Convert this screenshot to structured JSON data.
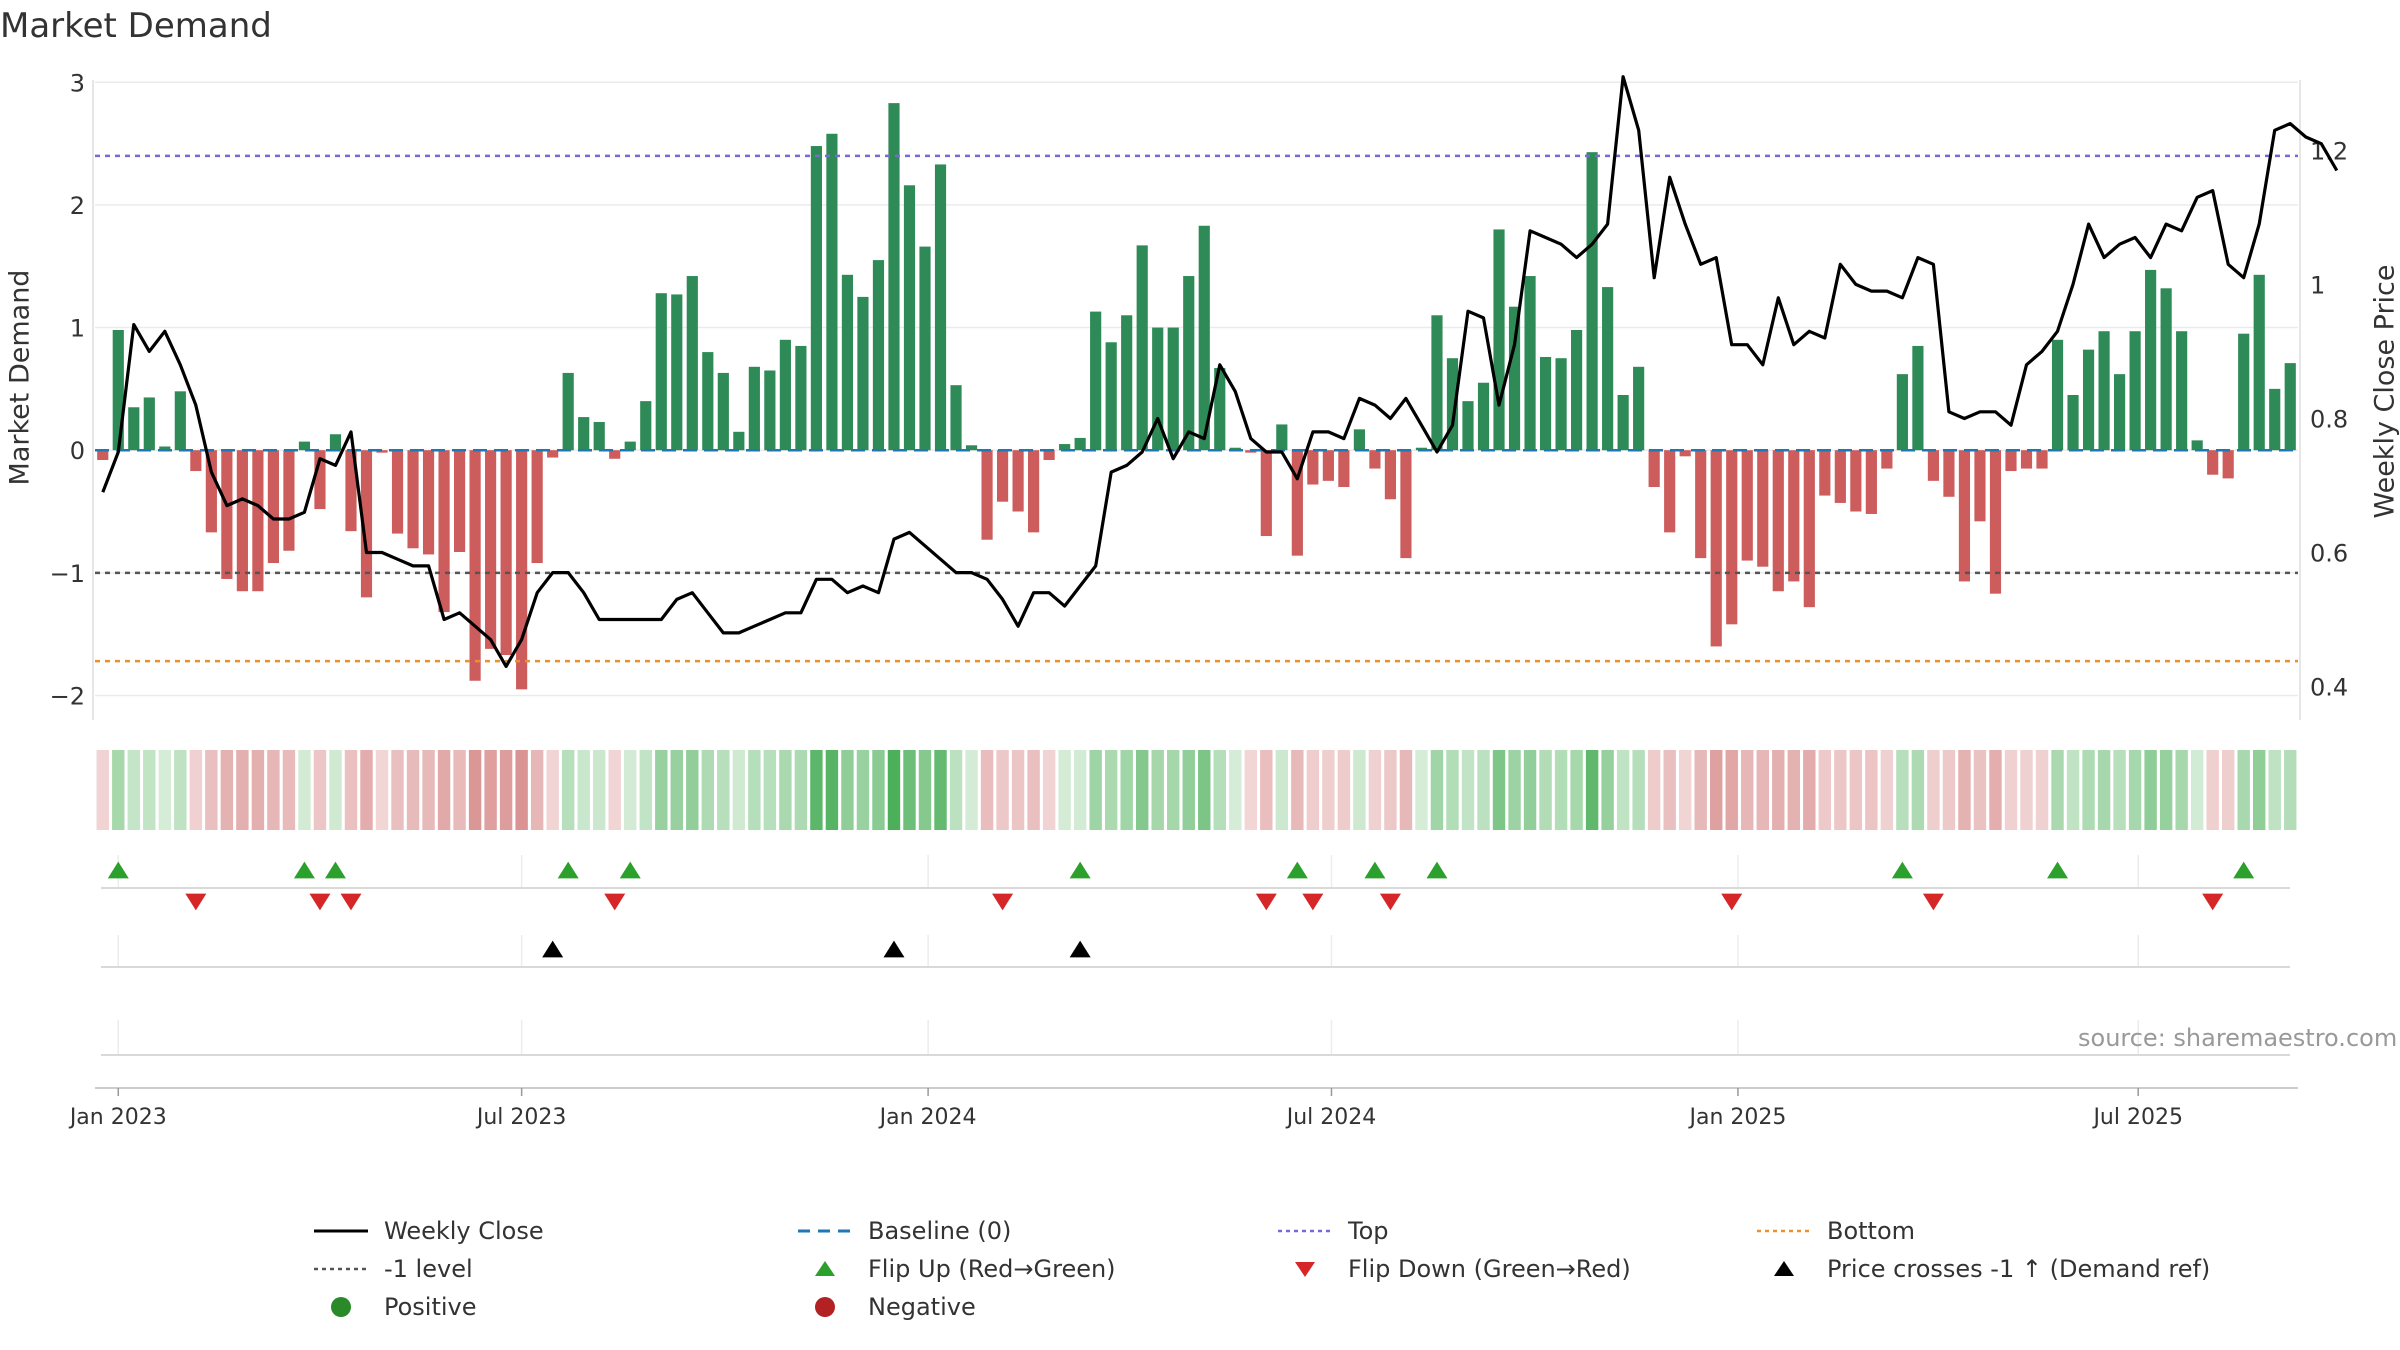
{
  "chart_data": {
    "type": "bar+line",
    "title": "Market Demand",
    "ylabel_left": "Market Demand",
    "ylabel_right": "Weekly Close Price",
    "source": "source: sharemaestro.com",
    "ylim_left": [
      -2.2,
      3.1
    ],
    "ylim_right": [
      0.35,
      1.32
    ],
    "yticks_left": [
      "−2",
      "−1",
      "0",
      "1",
      "2",
      "3"
    ],
    "yticks_left_values": [
      -2,
      -1,
      0,
      1,
      2,
      3
    ],
    "yticks_right": [
      "0.4",
      "0.6",
      "0.8",
      "1",
      "1.2"
    ],
    "yticks_right_values": [
      0.4,
      0.6,
      0.8,
      1.0,
      1.2
    ],
    "x_start_week": -1,
    "x_ticks": [
      {
        "label": "Jan 2023",
        "week": 0
      },
      {
        "label": "Jul 2023",
        "week": 26
      },
      {
        "label": "Jan 2024",
        "week": 52.2
      },
      {
        "label": "Jul 2024",
        "week": 78.2
      },
      {
        "label": "Jan 2025",
        "week": 104.4
      },
      {
        "label": "Jul 2025",
        "week": 130.2
      }
    ],
    "reference_lines": {
      "top": 2.4,
      "minus_one": -1,
      "bottom": -1.72,
      "baseline": 0
    },
    "demand": [
      -0.08,
      0.98,
      0.35,
      0.43,
      0.03,
      0.48,
      -0.17,
      -0.67,
      -1.05,
      -1.15,
      -1.15,
      -0.92,
      -0.82,
      0.07,
      -0.48,
      0.13,
      -0.66,
      -1.2,
      -0.02,
      -0.68,
      -0.8,
      -0.85,
      -1.32,
      -0.83,
      -1.88,
      -1.62,
      -1.67,
      -1.95,
      -0.92,
      -0.06,
      0.63,
      0.27,
      0.23,
      -0.07,
      0.07,
      0.4,
      1.28,
      1.27,
      1.42,
      0.8,
      0.63,
      0.15,
      0.68,
      0.65,
      0.9,
      0.85,
      2.48,
      2.58,
      1.43,
      1.25,
      1.55,
      2.83,
      2.16,
      1.66,
      2.33,
      0.53,
      0.04,
      -0.73,
      -0.42,
      -0.5,
      -0.67,
      -0.08,
      0.05,
      0.1,
      1.13,
      0.88,
      1.1,
      1.67,
      1.0,
      1.0,
      1.42,
      1.83,
      0.67,
      0.02,
      -0.02,
      -0.7,
      0.21,
      -0.86,
      -0.28,
      -0.25,
      -0.3,
      0.17,
      -0.15,
      -0.4,
      -0.88,
      0.02,
      1.1,
      0.75,
      0.4,
      0.55,
      1.8,
      1.17,
      1.42,
      0.76,
      0.75,
      0.98,
      2.43,
      1.33,
      0.45,
      0.68,
      -0.3,
      -0.67,
      -0.05,
      -0.88,
      -1.6,
      -1.42,
      -0.9,
      -0.95,
      -1.15,
      -1.07,
      -1.28,
      -0.37,
      -0.43,
      -0.5,
      -0.52,
      -0.15,
      0.62,
      0.85,
      -0.25,
      -0.38,
      -1.07,
      -0.58,
      -1.17,
      -0.17,
      -0.15,
      -0.15,
      0.9,
      0.45,
      0.82,
      0.97,
      0.62,
      0.97,
      1.47,
      1.32,
      0.97,
      0.08,
      -0.2,
      -0.23,
      0.95,
      1.43,
      0.5,
      0.71
    ],
    "close_price": [
      0.69,
      0.75,
      0.94,
      0.9,
      0.93,
      0.88,
      0.82,
      0.72,
      0.67,
      0.68,
      0.67,
      0.65,
      0.65,
      0.66,
      0.74,
      0.73,
      0.78,
      0.6,
      0.6,
      0.59,
      0.58,
      0.58,
      0.5,
      0.51,
      0.49,
      0.47,
      0.43,
      0.47,
      0.54,
      0.57,
      0.57,
      0.54,
      0.5,
      0.5,
      0.5,
      0.5,
      0.5,
      0.53,
      0.54,
      0.51,
      0.48,
      0.48,
      0.49,
      0.5,
      0.51,
      0.51,
      0.56,
      0.56,
      0.54,
      0.55,
      0.54,
      0.62,
      0.63,
      0.61,
      0.59,
      0.57,
      0.57,
      0.56,
      0.53,
      0.49,
      0.54,
      0.54,
      0.52,
      0.55,
      0.58,
      0.72,
      0.73,
      0.75,
      0.8,
      0.74,
      0.78,
      0.77,
      0.88,
      0.84,
      0.77,
      0.75,
      0.75,
      0.71,
      0.78,
      0.78,
      0.77,
      0.83,
      0.82,
      0.8,
      0.83,
      0.79,
      0.75,
      0.79,
      0.96,
      0.95,
      0.82,
      0.91,
      1.08,
      1.07,
      1.06,
      1.04,
      1.06,
      1.09,
      1.31,
      1.23,
      1.01,
      1.16,
      1.09,
      1.03,
      1.04,
      0.91,
      0.91,
      0.88,
      0.98,
      0.91,
      0.93,
      0.92,
      1.03,
      1.0,
      0.99,
      0.99,
      0.98,
      1.04,
      1.03,
      0.81,
      0.8,
      0.81,
      0.81,
      0.79,
      0.88,
      0.9,
      0.93,
      1.0,
      1.09,
      1.04,
      1.06,
      1.07,
      1.04,
      1.09,
      1.08,
      1.13,
      1.14,
      1.03,
      1.01,
      1.09,
      1.23,
      1.24,
      1.22,
      1.21,
      1.17
    ],
    "flip_up_weeks": [
      0,
      12,
      14,
      29,
      33,
      62,
      76,
      81,
      85,
      115,
      125,
      137
    ],
    "flip_down_weeks": [
      5,
      13,
      15,
      32,
      57,
      74,
      77,
      82,
      104,
      117,
      135
    ],
    "price_cross_weeks": [
      28,
      50,
      62
    ],
    "legend": [
      {
        "label": "Weekly Close",
        "symbol": "line",
        "color": "#000000"
      },
      {
        "label": "Baseline (0)",
        "symbol": "dashed",
        "color": "#1f77b4"
      },
      {
        "label": "Top",
        "symbol": "dotted",
        "color": "#7b68d6"
      },
      {
        "label": "Bottom",
        "symbol": "dotted",
        "color": "#e8912d"
      },
      {
        "label": "-1 level",
        "symbol": "dotted",
        "color": "#555555"
      },
      {
        "label": "Flip Up (Red→Green)",
        "symbol": "triangle-up",
        "color": "#2ca02c"
      },
      {
        "label": "Flip Down (Green→Red)",
        "symbol": "triangle-down",
        "color": "#d62728"
      },
      {
        "label": "Price crosses -1 ↑ (Demand ref)",
        "symbol": "triangle-up",
        "color": "#000000"
      },
      {
        "label": "Positive",
        "symbol": "circle",
        "color": "#2a8a2a"
      },
      {
        "label": "Negative",
        "symbol": "circle",
        "color": "#b22222"
      }
    ],
    "colors": {
      "positive_bar": "#2e8b57",
      "negative_bar": "#cd5c5c",
      "line": "#000000",
      "baseline": "#1f77b4",
      "top": "#7b68d6",
      "bottom": "#e8912d",
      "minus_one": "#555555"
    }
  }
}
